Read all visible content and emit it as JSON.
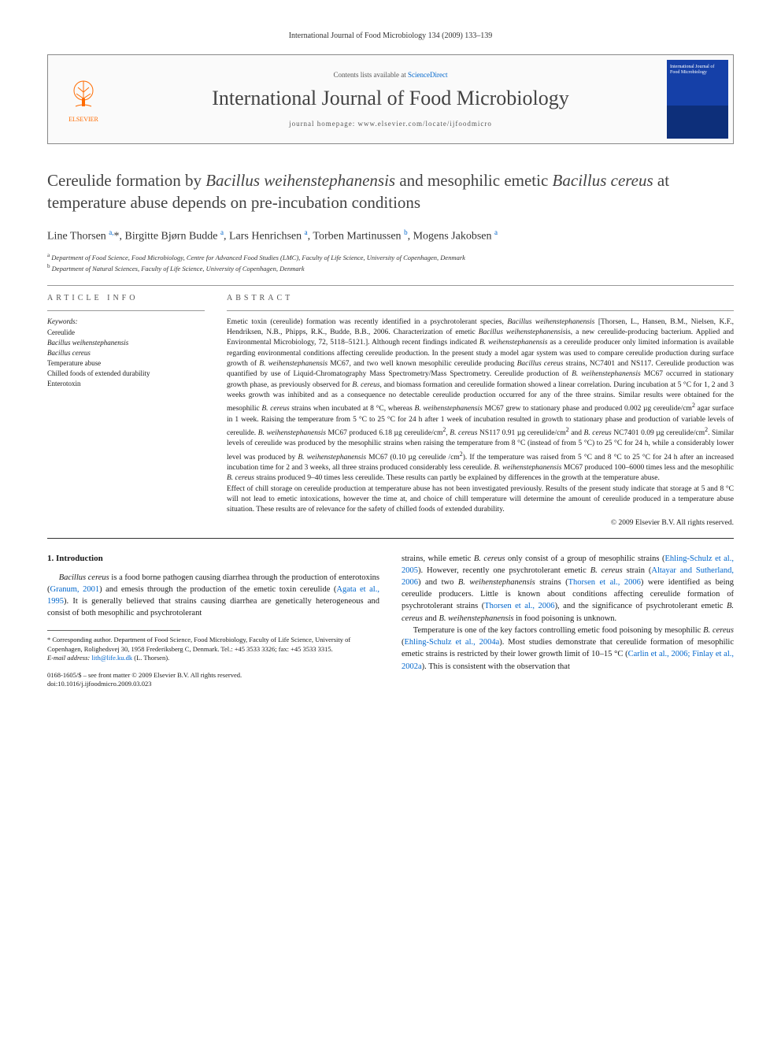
{
  "page_header": "International Journal of Food Microbiology 134 (2009) 133–139",
  "banner": {
    "contents_prefix": "Contents lists available at ",
    "contents_link": "ScienceDirect",
    "journal_name": "International Journal of Food Microbiology",
    "homepage_prefix": "journal homepage: ",
    "homepage_url": "www.elsevier.com/locate/ijfoodmicro",
    "publisher": "ELSEVIER",
    "cover_text": "International Journal of Food Microbiology"
  },
  "title_html": "Cereulide formation by <em>Bacillus weihenstephanensis</em> and mesophilic emetic <em>Bacillus cereus</em> at temperature abuse depends on pre-incubation conditions",
  "authors_html": "Line Thorsen <sup>a,</sup>*, Birgitte Bjørn Budde <sup>a</sup>, Lars Henrichsen <sup>a</sup>, Torben Martinussen <sup>b</sup>, Mogens Jakobsen <sup>a</sup>",
  "affiliations": [
    {
      "sup": "a",
      "text": "Department of Food Science, Food Microbiology, Centre for Advanced Food Studies (LMC), Faculty of Life Science, University of Copenhagen, Denmark"
    },
    {
      "sup": "b",
      "text": "Department of Natural Sciences, Faculty of Life Science, University of Copenhagen, Denmark"
    }
  ],
  "article_info": {
    "heading": "ARTICLE INFO",
    "keywords_label": "Keywords:",
    "keywords_html": "Cereulide<br><em>Bacillus weihenstephanensis</em><br><em>Bacillus cereus</em><br>Temperature abuse<br>Chilled foods of extended durability<br>Enterotoxin"
  },
  "abstract": {
    "heading": "ABSTRACT",
    "text_html": "Emetic toxin (cereulide) formation was recently identified in a psychrotolerant species, <em>Bacillus weihenstephanensis</em> [Thorsen, L., Hansen, B.M., Nielsen, K.F., Hendriksen, N.B., Phipps, R.K., Budde, B.B., 2006. Characterization of emetic <em>Bacillus weihenstephanensis</em>is, a new cereulide-producing bacterium. Applied and Environmental Microbiology, 72, 5118–5121.]. Although recent findings indicated <em>B. weihenstephanensis</em> as a cereulide producer only limited information is available regarding environmental conditions affecting cereulide production. In the present study a model agar system was used to compare cereulide production during surface growth of <em>B. weihenstephanensis</em> MC67, and two well known mesophilic cereulide producing <em>Bacillus cereus</em> strains, NC7401 and NS117. Cereulide production was quantified by use of Liquid-Chromatography Mass Spectrometry/Mass Spectrometry. Cereulide production of <em>B. weihenstephanensis</em> MC67 occurred in stationary growth phase, as previously observed for <em>B. cereus</em>, and biomass formation and cereulide formation showed a linear correlation. During incubation at 5 °C for 1, 2 and 3 weeks growth was inhibited and as a consequence no detectable cereulide production occurred for any of the three strains. Similar results were obtained for the mesophilic <em>B. cereus</em> strains when incubated at 8 °C, whereas <em>B. weihenstephanensis</em> MC67 grew to stationary phase and produced 0.002 µg cereulide/cm<sup>2</sup> agar surface in 1 week. Raising the temperature from 5 °C to 25 °C for 24 h after 1 week of incubation resulted in growth to stationary phase and production of variable levels of cereulide. <em>B. weihenstephanensis</em> MC67 produced 6.18 µg cereulide/cm<sup>2</sup>, <em>B. cereus</em> NS117 0.91 µg cereulide/cm<sup>2</sup> and <em>B. cereus</em> NC7401 0.09 µg cereulide/cm<sup>2</sup>. Similar levels of cereulide was produced by the mesophilic strains when raising the temperature from 8 °C (instead of from 5 °C) to 25 °C for 24 h, while a considerably lower level was produced by <em>B. weihenstephanensis</em> MC67 (0.10 µg cereulide /cm<sup>2</sup>). If the temperature was raised from 5 °C and 8 °C to 25 °C for 24 h after an increased incubation time for 2 and 3 weeks, all three strains produced considerably less cereulide. <em>B. weihenstephanensis</em> MC67 produced 100–6000 times less and the mesophilic <em>B. cereus</em> strains produced 9–40 times less cereulide. These results can partly be explained by differences in the growth at the temperature abuse.<br>Effect of chill storage on cereulide production at temperature abuse has not been investigated previously. Results of the present study indicate that storage at 5 and 8 °C will not lead to emetic intoxications, however the time at, and choice of chill temperature will determine the amount of cereulide produced in a temperature abuse situation. These results are of relevance for the safety of chilled foods of extended durability.",
    "copyright": "© 2009 Elsevier B.V. All rights reserved."
  },
  "intro": {
    "heading": "1. Introduction",
    "p1_html": "<em>Bacillus cereus</em> is a food borne pathogen causing diarrhea through the production of enterotoxins (<a href='#'>Granum, 2001</a>) and emesis through the production of the emetic toxin cereulide (<a href='#'>Agata et al., 1995</a>). It is generally believed that strains causing diarrhea are genetically heterogeneous and consist of both mesophilic and psychrotolerant",
    "p2_html": "strains, while emetic <em>B. cereus</em> only consist of a group of mesophilic strains (<a href='#'>Ehling-Schulz et al., 2005</a>). However, recently one psychrotolerant emetic <em>B. cereus</em> strain (<a href='#'>Altayar and Sutherland, 2006</a>) and two <em>B. weihenstephanensis</em> strains (<a href='#'>Thorsen et al., 2006</a>) were identified as being cereulide producers. Little is known about conditions affecting cereulide formation of psychrotolerant strains (<a href='#'>Thorsen et al., 2006</a>), and the significance of psychrotolerant emetic <em>B. cereus</em> and <em>B. weihenstephanensis</em> in food poisoning is unknown.",
    "p3_html": "Temperature is one of the key factors controlling emetic food poisoning by mesophilic <em>B. cereus</em> (<a href='#'>Ehling-Schulz et al., 2004a</a>). Most studies demonstrate that cereulide formation of mesophilic emetic strains is restricted by their lower growth limit of 10–15 °C (<a href='#'>Carlin et al., 2006; Finlay et al., 2002a</a>). This is consistent with the observation that"
  },
  "footnotes": {
    "corr_html": "* Corresponding author. Department of Food Science, Food Microbiology, Faculty of Life Science, University of Copenhagen, Rolighedsvej 30, 1958 Frederiksberg C, Denmark. Tel.: +45 3533 3326; fax: +45 3533 3315.",
    "email_label": "E-mail address:",
    "email": "lith@life.ku.dk",
    "email_name": "(L. Thorsen)."
  },
  "footer": {
    "line1": "0168-1605/$ – see front matter © 2009 Elsevier B.V. All rights reserved.",
    "line2": "doi:10.1016/j.ijfoodmicro.2009.03.023"
  },
  "colors": {
    "link": "#0066cc",
    "text": "#1a1a1a",
    "heading_gray": "#434343",
    "elsevier_orange": "#ff6b00",
    "cover_blue_top": "#1540a8",
    "cover_blue_bottom": "#0d2f7a"
  }
}
